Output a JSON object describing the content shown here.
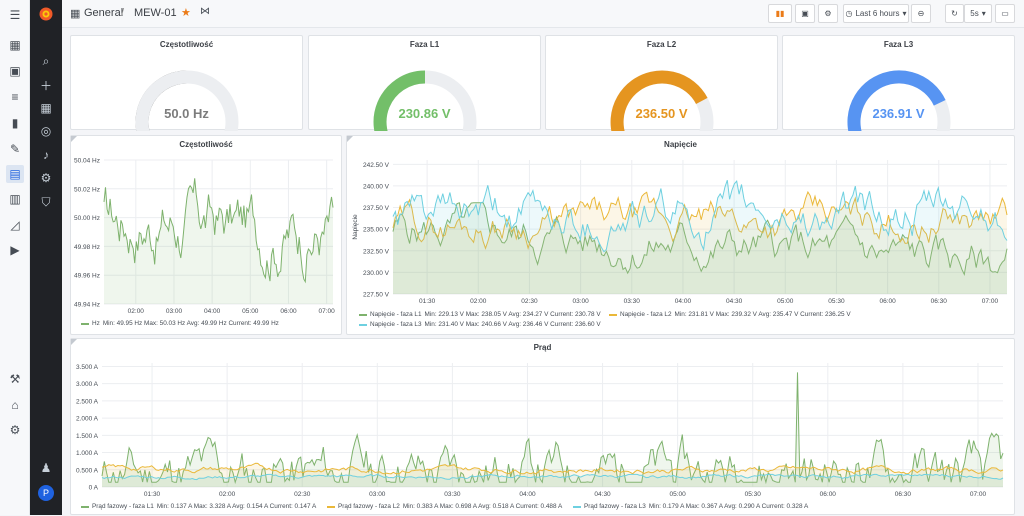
{
  "breadcrumb": {
    "folder": "General",
    "separator": "/",
    "dashboard": "MEW-01"
  },
  "toolbar": {
    "time_range": "Last 6 hours",
    "refresh_interval": "5s"
  },
  "user": {
    "avatar_letter": "P"
  },
  "colors": {
    "l1": "#7eb26d",
    "l2": "#eab839",
    "l3": "#6ed0e0",
    "hz": "#7eb26d",
    "gauge_hz": "#7c7c7c",
    "gauge_l1": "#73bf69",
    "gauge_l2": "#e59520",
    "gauge_l3": "#5794f2",
    "star": "#eb7b18"
  },
  "gauges": [
    {
      "title": "Częstotliwość",
      "value": "50.0 Hz",
      "fraction": 0.5
    },
    {
      "title": "Faza L1",
      "value": "230.86 V",
      "fraction": 0.5
    },
    {
      "title": "Faza L2",
      "value": "236.50 V",
      "fraction": 0.73
    },
    {
      "title": "Faza L3",
      "value": "236.91 V",
      "fraction": 0.74
    }
  ],
  "panels": {
    "freq": "Częstotliwość",
    "voltage": "Napięcie",
    "current": "Prąd"
  },
  "legends": {
    "freq": [
      {
        "name": "Hz",
        "stats": "Min: 49.95 Hz  Max: 50.03 Hz  Avg: 49.99 Hz  Current: 49.99 Hz"
      }
    ],
    "voltage": [
      {
        "name": "Napięcie - faza L1",
        "stats": "Min: 229.13 V  Max: 238.05 V  Avg: 234.27 V  Current: 230.78 V"
      },
      {
        "name": "Napięcie - faza L2",
        "stats": "Min: 231.81 V  Max: 239.32 V  Avg: 235.47 V  Current: 236.25 V"
      },
      {
        "name": "Napięcie - faza L3",
        "stats": "Min: 231.40 V  Max: 240.66 V  Avg: 236.46 V  Current: 236.60 V"
      }
    ],
    "current": [
      {
        "name": "Prąd fazowy - faza L1",
        "stats": "Min: 0.137 A  Max: 3.328 A  Avg: 0.154 A  Current: 0.147 A"
      },
      {
        "name": "Prąd fazowy - faza L2",
        "stats": "Min: 0.383 A  Max: 0.698 A  Avg: 0.518 A  Current: 0.488 A"
      },
      {
        "name": "Prąd fazowy - faza L3",
        "stats": "Min: 0.179 A  Max: 0.367 A  Avg: 0.290 A  Current: 0.328 A"
      }
    ]
  },
  "chart_data": [
    {
      "type": "line",
      "title": "Częstotliwość",
      "ylabel": "",
      "x_ticks": [
        "02:00",
        "03:00",
        "04:00",
        "05:00",
        "06:00",
        "07:00"
      ],
      "y_ticks": [
        "49.94 Hz",
        "49.96 Hz",
        "49.98 Hz",
        "50.00 Hz",
        "50.02 Hz",
        "50.04 Hz"
      ],
      "ylim": [
        49.94,
        50.04
      ],
      "xlim": [
        "01:10",
        "07:10"
      ],
      "series": [
        {
          "name": "Hz",
          "y_start": 50.0,
          "y_end": 49.99,
          "y_min": 49.95,
          "y_max": 50.03,
          "mean": 49.99
        }
      ]
    },
    {
      "type": "line",
      "title": "Napięcie",
      "ylabel": "Napięcie",
      "x_ticks": [
        "01:30",
        "02:00",
        "02:30",
        "03:00",
        "03:30",
        "04:00",
        "04:30",
        "05:00",
        "05:30",
        "06:00",
        "06:30",
        "07:00"
      ],
      "y_ticks": [
        "227.50 V",
        "230.00 V",
        "232.50 V",
        "235.00 V",
        "237.50 V",
        "240.00 V",
        "242.50 V"
      ],
      "ylim": [
        227.5,
        243.0
      ],
      "xlim": [
        "01:10",
        "07:10"
      ],
      "series": [
        {
          "name": "Napięcie - faza L1",
          "y_start": 235.0,
          "y_end": 230.78,
          "y_min": 229.13,
          "y_max": 238.05,
          "mean": 234.27
        },
        {
          "name": "Napięcie - faza L2",
          "y_start": 235.5,
          "y_end": 236.25,
          "y_min": 231.81,
          "y_max": 239.32,
          "mean": 235.47
        },
        {
          "name": "Napięcie - faza L3",
          "y_start": 236.0,
          "y_end": 236.6,
          "y_min": 231.4,
          "y_max": 240.66,
          "mean": 236.46
        }
      ]
    },
    {
      "type": "line",
      "title": "Prąd",
      "ylabel": "",
      "x_ticks": [
        "01:30",
        "02:00",
        "02:30",
        "03:00",
        "03:30",
        "04:00",
        "04:30",
        "05:00",
        "05:30",
        "06:00",
        "06:30",
        "07:00"
      ],
      "y_ticks": [
        "0 A",
        "0.500 A",
        "1.000 A",
        "1.500 A",
        "2.000 A",
        "2.500 A",
        "3.000 A",
        "3.500 A"
      ],
      "ylim": [
        0,
        3.6
      ],
      "xlim": [
        "01:10",
        "07:10"
      ],
      "series": [
        {
          "name": "Prąd fazowy - faza L1",
          "y_start": 0.15,
          "y_end": 0.147,
          "y_min": 0.137,
          "y_max": 3.328,
          "mean": 0.154,
          "spike_time": "05:48"
        },
        {
          "name": "Prąd fazowy - faza L2",
          "y_start": 0.53,
          "y_end": 0.488,
          "y_min": 0.383,
          "y_max": 0.698,
          "mean": 0.518
        },
        {
          "name": "Prąd fazowy - faza L3",
          "y_start": 0.29,
          "y_end": 0.328,
          "y_min": 0.179,
          "y_max": 0.367,
          "mean": 0.29
        }
      ]
    }
  ]
}
